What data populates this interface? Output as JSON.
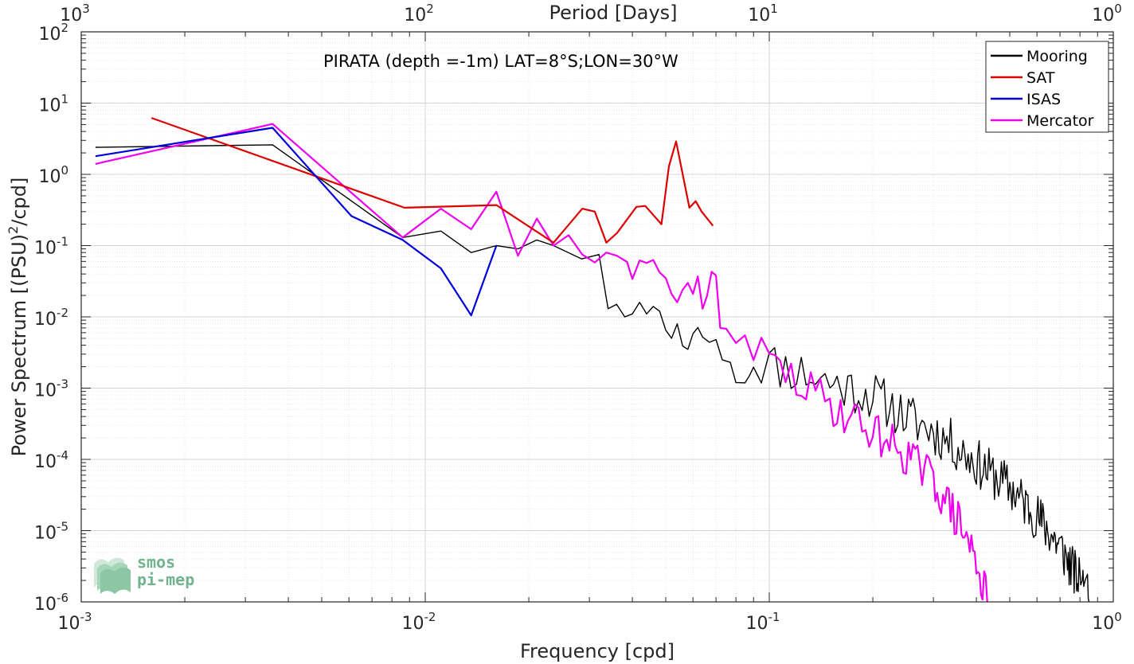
{
  "chart_data": {
    "type": "line",
    "title": "PIRATA (depth =-1m) LAT=8°S;LON=30°W",
    "xlabel": "Frequency [cpd]",
    "ylabel": "Power Spectrum [(PSU)²/cpd]",
    "top_xlabel": "Period [Days]",
    "x_scale": "log",
    "y_scale": "log",
    "xlim": [
      0.001,
      1
    ],
    "ylim": [
      1e-06,
      100
    ],
    "x_ticks": [
      {
        "label": "10",
        "exp": "-3"
      },
      {
        "label": "10",
        "exp": "-2"
      },
      {
        "label": "10",
        "exp": "-1"
      },
      {
        "label": "10",
        "exp": "0"
      }
    ],
    "y_ticks": [
      {
        "label": "10",
        "exp": "-6"
      },
      {
        "label": "10",
        "exp": "-5"
      },
      {
        "label": "10",
        "exp": "-4"
      },
      {
        "label": "10",
        "exp": "-3"
      },
      {
        "label": "10",
        "exp": "-2"
      },
      {
        "label": "10",
        "exp": "-1"
      },
      {
        "label": "10",
        "exp": "0"
      },
      {
        "label": "10",
        "exp": "1"
      },
      {
        "label": "10",
        "exp": "2"
      }
    ],
    "top_ticks": [
      {
        "label": "10",
        "exp": "3"
      },
      {
        "label": "10",
        "exp": "2"
      },
      {
        "label": "10",
        "exp": "1"
      },
      {
        "label": "10",
        "exp": "0"
      }
    ],
    "grid": true,
    "legend_position": "top-right",
    "series": [
      {
        "name": "Mooring",
        "color": "#000000",
        "noise_from": 0.085,
        "noise_amp": 0.35,
        "noise_seed": 11,
        "points": [
          [
            0.0011,
            2.4
          ],
          [
            0.0036,
            2.6
          ],
          [
            0.0086,
            0.13
          ],
          [
            0.0111,
            0.16
          ],
          [
            0.0136,
            0.08
          ],
          [
            0.0161,
            0.1
          ],
          [
            0.0186,
            0.09
          ],
          [
            0.0211,
            0.12
          ],
          [
            0.0236,
            0.1
          ],
          [
            0.0285,
            0.065
          ],
          [
            0.032,
            0.075
          ],
          [
            0.034,
            0.013
          ],
          [
            0.036,
            0.015
          ],
          [
            0.038,
            0.01
          ],
          [
            0.04,
            0.011
          ],
          [
            0.042,
            0.016
          ],
          [
            0.044,
            0.011
          ],
          [
            0.046,
            0.014
          ],
          [
            0.048,
            0.012
          ],
          [
            0.05,
            0.0065
          ],
          [
            0.052,
            0.005
          ],
          [
            0.054,
            0.008
          ],
          [
            0.056,
            0.0039
          ],
          [
            0.058,
            0.0035
          ],
          [
            0.06,
            0.0058
          ],
          [
            0.062,
            0.0071
          ],
          [
            0.064,
            0.0052
          ],
          [
            0.067,
            0.0044
          ],
          [
            0.07,
            0.0048
          ],
          [
            0.073,
            0.0025
          ],
          [
            0.077,
            0.0023
          ],
          [
            0.08,
            0.0012
          ],
          [
            0.085,
            0.0018
          ],
          [
            0.09,
            0.0025
          ],
          [
            0.1,
            0.0022
          ],
          [
            0.12,
            0.0018
          ],
          [
            0.15,
            0.0012
          ],
          [
            0.2,
            0.0008
          ],
          [
            0.25,
            0.0004
          ],
          [
            0.3,
            0.00025
          ],
          [
            0.35,
            0.00015
          ],
          [
            0.4,
            9e-05
          ],
          [
            0.5,
            4e-05
          ],
          [
            0.6,
            1.6e-05
          ],
          [
            0.7,
            6e-06
          ],
          [
            0.8,
            1.8e-06
          ],
          [
            0.85,
            1e-06
          ]
        ]
      },
      {
        "name": "SAT",
        "color": "#dd0000",
        "points": [
          [
            0.0016,
            6.2
          ],
          [
            0.0087,
            0.34
          ],
          [
            0.0161,
            0.37
          ],
          [
            0.0236,
            0.11
          ],
          [
            0.0286,
            0.33
          ],
          [
            0.0311,
            0.3
          ],
          [
            0.0336,
            0.11
          ],
          [
            0.0361,
            0.15
          ],
          [
            0.0411,
            0.35
          ],
          [
            0.0436,
            0.36
          ],
          [
            0.0486,
            0.2
          ],
          [
            0.0511,
            1.3
          ],
          [
            0.0536,
            2.9
          ],
          [
            0.0586,
            0.34
          ],
          [
            0.0611,
            0.42
          ],
          [
            0.0636,
            0.3
          ],
          [
            0.0686,
            0.19
          ]
        ]
      },
      {
        "name": "ISAS",
        "color": "#0000dd",
        "points": [
          [
            0.0011,
            1.8
          ],
          [
            0.0036,
            4.5
          ],
          [
            0.0061,
            0.26
          ],
          [
            0.0086,
            0.12
          ],
          [
            0.0111,
            0.048
          ],
          [
            0.0136,
            0.0105
          ],
          [
            0.0161,
            0.1
          ]
        ]
      },
      {
        "name": "Mercator",
        "color": "#ee00ee",
        "noise_from": 0.087,
        "noise_amp": 0.3,
        "noise_seed": 29,
        "points": [
          [
            0.0011,
            1.4
          ],
          [
            0.0036,
            5.1
          ],
          [
            0.0086,
            0.13
          ],
          [
            0.0111,
            0.33
          ],
          [
            0.0136,
            0.17
          ],
          [
            0.0161,
            0.57
          ],
          [
            0.0186,
            0.072
          ],
          [
            0.0211,
            0.24
          ],
          [
            0.0236,
            0.1
          ],
          [
            0.0261,
            0.14
          ],
          [
            0.0286,
            0.075
          ],
          [
            0.0311,
            0.058
          ],
          [
            0.0336,
            0.08
          ],
          [
            0.0361,
            0.072
          ],
          [
            0.0386,
            0.059
          ],
          [
            0.04,
            0.034
          ],
          [
            0.042,
            0.062
          ],
          [
            0.044,
            0.057
          ],
          [
            0.046,
            0.063
          ],
          [
            0.048,
            0.042
          ],
          [
            0.05,
            0.035
          ],
          [
            0.052,
            0.021
          ],
          [
            0.054,
            0.016
          ],
          [
            0.056,
            0.024
          ],
          [
            0.058,
            0.03
          ],
          [
            0.06,
            0.021
          ],
          [
            0.062,
            0.037
          ],
          [
            0.064,
            0.013
          ],
          [
            0.066,
            0.02
          ],
          [
            0.068,
            0.043
          ],
          [
            0.07,
            0.038
          ],
          [
            0.072,
            0.007
          ],
          [
            0.075,
            0.0068
          ],
          [
            0.08,
            0.0043
          ],
          [
            0.085,
            0.0055
          ],
          [
            0.09,
            0.0035
          ],
          [
            0.1,
            0.0024
          ],
          [
            0.12,
            0.0012
          ],
          [
            0.15,
            0.0006
          ],
          [
            0.2,
            0.00025
          ],
          [
            0.25,
            0.00012
          ],
          [
            0.3,
            5e-05
          ],
          [
            0.35,
            1.5e-05
          ],
          [
            0.4,
            4e-06
          ],
          [
            0.43,
            1e-06
          ]
        ]
      }
    ]
  }
}
